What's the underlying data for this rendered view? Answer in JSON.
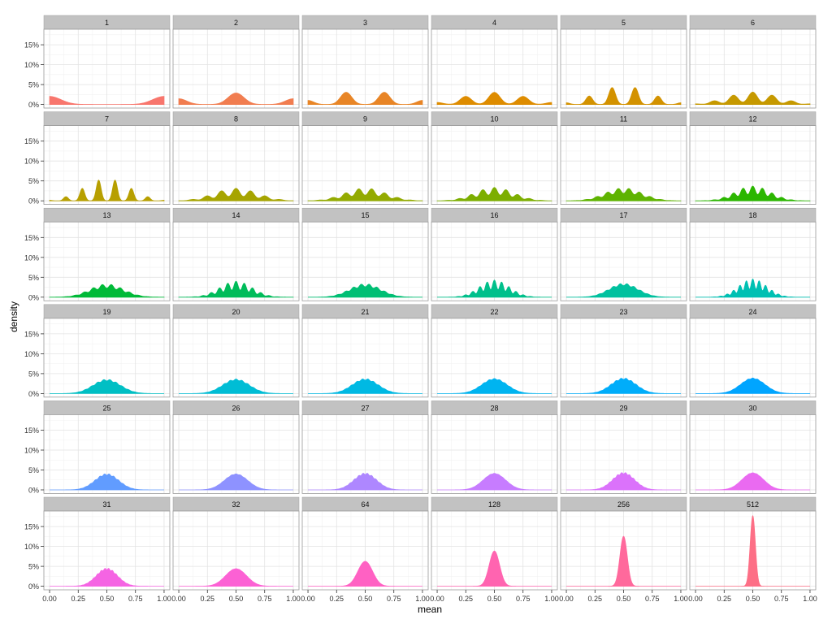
{
  "chart_data": {
    "type": "area",
    "subtype": "faceted density",
    "xlabel": "mean",
    "ylabel": "density",
    "xlim": [
      -0.05,
      1.05
    ],
    "ylim": [
      -0.9,
      18.9
    ],
    "x_ticks": [
      "0.00",
      "0.25",
      "0.50",
      "0.75",
      "1.00"
    ],
    "x_tick_values": [
      0,
      0.25,
      0.5,
      0.75,
      1
    ],
    "y_ticks": [
      "0%",
      "5%",
      "10%",
      "15%"
    ],
    "y_tick_values": [
      0,
      5,
      10,
      15
    ],
    "grid": true,
    "legend": "none",
    "palette": {
      "scale": "hue",
      "hue_start": 15,
      "hue_step": 10,
      "chroma": 100,
      "luminance": 65
    },
    "strip_color": "#c2c2c2",
    "facets": [
      {
        "label": "1",
        "n": 1,
        "peak_pct": 2.0
      },
      {
        "label": "2",
        "n": 2,
        "peak_pct": 2.6
      },
      {
        "label": "3",
        "n": 3,
        "peak_pct": 2.5
      },
      {
        "label": "4",
        "n": 4,
        "peak_pct": 2.4
      },
      {
        "label": "5",
        "n": 5,
        "peak_pct": 3.9
      },
      {
        "label": "6",
        "n": 6,
        "peak_pct": 2.5
      },
      {
        "label": "7",
        "n": 7,
        "peak_pct": 3.8
      },
      {
        "label": "8",
        "n": 8,
        "peak_pct": 2.5
      },
      {
        "label": "9",
        "n": 9,
        "peak_pct": 2.3
      },
      {
        "label": "10",
        "n": 10,
        "peak_pct": 2.6
      },
      {
        "label": "11",
        "n": 11,
        "peak_pct": 2.6
      },
      {
        "label": "12",
        "n": 12,
        "peak_pct": 3.0
      },
      {
        "label": "13",
        "n": 13,
        "peak_pct": 2.7
      },
      {
        "label": "14",
        "n": 14,
        "peak_pct": 4.1
      },
      {
        "label": "15",
        "n": 15,
        "peak_pct": 3.2
      },
      {
        "label": "16",
        "n": 16,
        "peak_pct": 3.2
      },
      {
        "label": "17",
        "n": 17,
        "peak_pct": 3.1
      },
      {
        "label": "18",
        "n": 18,
        "peak_pct": 4.1
      },
      {
        "label": "19",
        "n": 19,
        "peak_pct": 3.3
      },
      {
        "label": "20",
        "n": 20,
        "peak_pct": 4.4
      },
      {
        "label": "21",
        "n": 21,
        "peak_pct": 3.7
      },
      {
        "label": "22",
        "n": 22,
        "peak_pct": 3.5
      },
      {
        "label": "23",
        "n": 23,
        "peak_pct": 3.8
      },
      {
        "label": "24",
        "n": 24,
        "peak_pct": 4.0
      },
      {
        "label": "25",
        "n": 25,
        "peak_pct": 4.2
      },
      {
        "label": "26",
        "n": 26,
        "peak_pct": 4.4
      },
      {
        "label": "27",
        "n": 27,
        "peak_pct": 4.1
      },
      {
        "label": "28",
        "n": 28,
        "peak_pct": 4.4
      },
      {
        "label": "29",
        "n": 29,
        "peak_pct": 4.4
      },
      {
        "label": "30",
        "n": 30,
        "peak_pct": 4.6
      },
      {
        "label": "31",
        "n": 31,
        "peak_pct": 4.8
      },
      {
        "label": "32",
        "n": 32,
        "peak_pct": 4.5
      },
      {
        "label": "64",
        "n": 64,
        "peak_pct": 6.2
      },
      {
        "label": "128",
        "n": 128,
        "peak_pct": 9.0
      },
      {
        "label": "256",
        "n": 256,
        "peak_pct": 12.5
      },
      {
        "label": "512",
        "n": 512,
        "peak_pct": 18.0
      }
    ]
  }
}
